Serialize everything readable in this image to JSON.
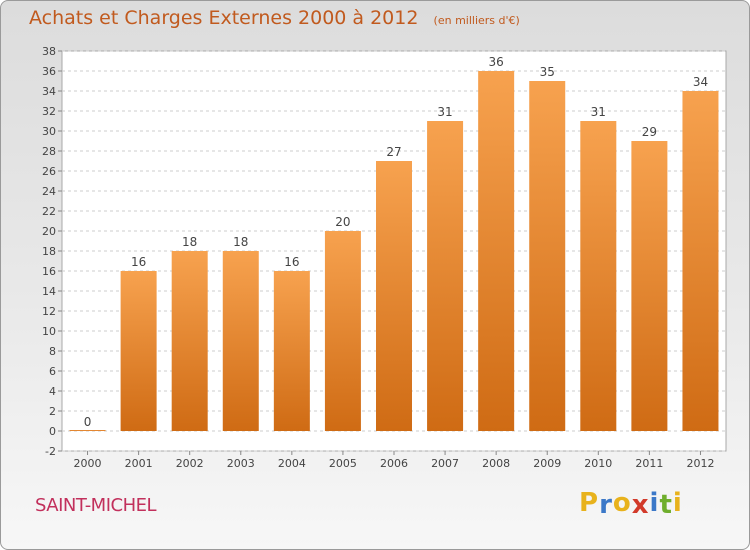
{
  "chart_data": {
    "type": "bar",
    "title": "Achats et Charges Externes 2000 à 2012",
    "subtitle": "(en milliers d'€)",
    "categories": [
      "2000",
      "2001",
      "2002",
      "2003",
      "2004",
      "2005",
      "2006",
      "2007",
      "2008",
      "2009",
      "2010",
      "2011",
      "2012"
    ],
    "values": [
      0,
      16,
      18,
      18,
      16,
      20,
      27,
      31,
      36,
      35,
      31,
      29,
      34
    ],
    "ylim": [
      -2,
      38
    ],
    "yticks": [
      "-2",
      "0",
      "2",
      "4",
      "6",
      "8",
      "10",
      "12",
      "14",
      "16",
      "18",
      "20",
      "22",
      "24",
      "26",
      "28",
      "30",
      "32",
      "34",
      "36",
      "38"
    ],
    "grid": true,
    "bar_color_top": "#f7a24f",
    "bar_color_bottom": "#cf6b14",
    "legend": "none"
  },
  "footer": {
    "town": "SAINT-MICHEL",
    "logo_letters": [
      "P",
      "r",
      "o",
      "x",
      "i",
      "t",
      "i"
    ],
    "logo_colors": [
      "#e8b21c",
      "#3b78c8",
      "#e8b21c",
      "#d23a2a",
      "#3b78c8",
      "#6fae2c",
      "#e8b21c"
    ]
  }
}
